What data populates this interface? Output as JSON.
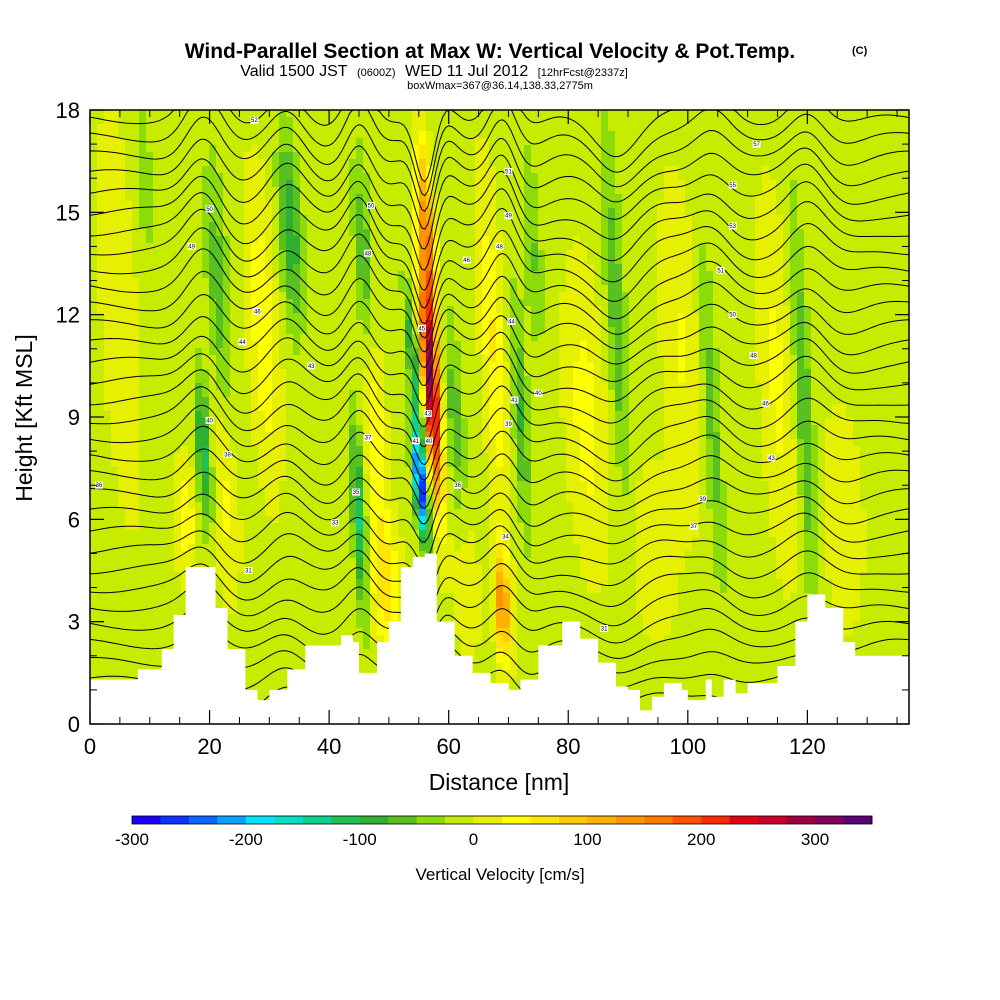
{
  "chart_data": {
    "type": "heatmap",
    "title": "Wind-Parallel Section at Max W: Vertical Velocity & Pot.Temp.",
    "title_badge": "(C)",
    "subtitle_main": "Valid 1500 JST",
    "subtitle_zulu": "(0600Z)",
    "subtitle_date": "WED 11 Jul 2012",
    "subtitle_fcst": "[12hrFcst@2337z]",
    "subtitle_box": "boxWmax=367@36.14,138.33,2775m",
    "xlabel": "Distance [nm]",
    "ylabel": "Height [Kft MSL]",
    "xlim": [
      0,
      137
    ],
    "ylim": [
      0,
      18
    ],
    "x_ticks": [
      0,
      20,
      40,
      60,
      80,
      100,
      120
    ],
    "x_tick_labels": [
      "0",
      "20",
      "40",
      "60",
      "80",
      "100",
      "120"
    ],
    "y_ticks": [
      0,
      3,
      6,
      9,
      12,
      15,
      18
    ],
    "y_tick_labels": [
      "0",
      "3",
      "6",
      "9",
      "12",
      "15",
      "18"
    ],
    "colorbar": {
      "label": "Vertical Velocity [cm/s]",
      "min": -300,
      "max": 350,
      "step": 25,
      "tick_values": [
        -300,
        -200,
        -100,
        0,
        100,
        200,
        300
      ],
      "tick_labels": [
        "-300",
        "-200",
        "-100",
        "0",
        "100",
        "200",
        "300"
      ],
      "colors": [
        "#1a00ff",
        "#0a34ff",
        "#0a68ff",
        "#0aa0ff",
        "#00e6ff",
        "#00e0c8",
        "#10d08c",
        "#20c050",
        "#30b030",
        "#58c020",
        "#8cdc0a",
        "#c8ec00",
        "#e6f000",
        "#ffff00",
        "#ffe600",
        "#ffcc00",
        "#ffb000",
        "#ff9400",
        "#ff7800",
        "#ff5000",
        "#ff2800",
        "#e60014",
        "#c80028",
        "#a00040",
        "#80005a",
        "#5a0078"
      ]
    },
    "terrain_kft": [
      [
        0,
        1.3
      ],
      [
        4,
        1.3
      ],
      [
        8,
        1.6
      ],
      [
        12,
        2.2
      ],
      [
        14,
        3.2
      ],
      [
        16,
        4.6
      ],
      [
        19,
        4.6
      ],
      [
        21,
        3.4
      ],
      [
        23,
        2.2
      ],
      [
        26,
        1.0
      ],
      [
        28,
        0.7
      ],
      [
        30,
        1.0
      ],
      [
        33,
        1.6
      ],
      [
        36,
        2.3
      ],
      [
        40,
        2.3
      ],
      [
        42,
        2.6
      ],
      [
        44,
        2.4
      ],
      [
        45,
        1.5
      ],
      [
        48,
        2.4
      ],
      [
        50,
        3.0
      ],
      [
        52,
        4.6
      ],
      [
        54,
        4.9
      ],
      [
        56,
        5.0
      ],
      [
        58,
        3.0
      ],
      [
        61,
        2.0
      ],
      [
        64,
        1.5
      ],
      [
        67,
        1.2
      ],
      [
        70,
        1.0
      ],
      [
        72,
        1.3
      ],
      [
        75,
        2.3
      ],
      [
        79,
        3.0
      ],
      [
        82,
        2.5
      ],
      [
        85,
        1.8
      ],
      [
        88,
        1.1
      ],
      [
        90,
        1.0
      ],
      [
        92,
        0.4
      ],
      [
        94,
        0.8
      ],
      [
        96,
        1.2
      ],
      [
        99,
        1.0
      ],
      [
        100,
        0.7
      ],
      [
        103,
        1.3
      ],
      [
        104,
        0.8
      ],
      [
        106,
        1.3
      ],
      [
        108,
        0.9
      ],
      [
        110,
        1.2
      ],
      [
        115,
        1.7
      ],
      [
        118,
        3.0
      ],
      [
        120,
        3.8
      ],
      [
        123,
        3.4
      ],
      [
        126,
        2.4
      ],
      [
        128,
        2.0
      ],
      [
        133,
        2.0
      ],
      [
        137,
        2.0
      ]
    ],
    "w_features": [
      {
        "x": 57.0,
        "y": 10.0,
        "w": 315,
        "sx": 1.3,
        "sy": 3.2,
        "tilt": -0.35
      },
      {
        "x": 56.4,
        "y": 14.5,
        "w": 150,
        "sx": 1.2,
        "sy": 2.5,
        "tilt": -0.4
      },
      {
        "x": 55.2,
        "y": 7.0,
        "w": -270,
        "sx": 1.0,
        "sy": 1.6,
        "tilt": -0.55
      },
      {
        "x": 54.4,
        "y": 10.0,
        "w": -115,
        "sx": 0.9,
        "sy": 2.6,
        "tilt": -0.55
      },
      {
        "x": 69.0,
        "y": 3.5,
        "w": 160,
        "sx": 1.2,
        "sy": 1.6,
        "tilt": -0.2
      },
      {
        "x": 67.5,
        "y": 11.0,
        "w": 60,
        "sx": 1.8,
        "sy": 4.5,
        "tilt": -0.3
      },
      {
        "x": 19.0,
        "y": 8.0,
        "w": -105,
        "sx": 1.3,
        "sy": 2.2,
        "tilt": -0.3
      },
      {
        "x": 21.5,
        "y": 12.5,
        "w": -60,
        "sx": 1.8,
        "sy": 4.0,
        "tilt": -0.3
      },
      {
        "x": 22.5,
        "y": 7.0,
        "w": 45,
        "sx": 2.0,
        "sy": 3.0,
        "tilt": -0.3
      },
      {
        "x": 33.5,
        "y": 14.5,
        "w": -90,
        "sx": 1.8,
        "sy": 2.8,
        "tilt": -0.3
      },
      {
        "x": 29.0,
        "y": 11.5,
        "w": 55,
        "sx": 2.2,
        "sy": 4.0,
        "tilt": -0.3
      },
      {
        "x": 45.0,
        "y": 6.0,
        "w": -120,
        "sx": 1.1,
        "sy": 2.8,
        "tilt": -0.3
      },
      {
        "x": 46.0,
        "y": 13.0,
        "w": -80,
        "sx": 1.5,
        "sy": 3.5,
        "tilt": -0.3
      },
      {
        "x": 47.5,
        "y": 9.0,
        "w": 75,
        "sx": 1.6,
        "sy": 4.0,
        "tilt": -0.3
      },
      {
        "x": 49.5,
        "y": 4.0,
        "w": 65,
        "sx": 2.5,
        "sy": 1.8,
        "tilt": -0.2
      },
      {
        "x": 16.0,
        "y": 6.0,
        "w": 50,
        "sx": 1.8,
        "sy": 1.6,
        "tilt": -0.2
      },
      {
        "x": 72.0,
        "y": 9.0,
        "w": -70,
        "sx": 1.3,
        "sy": 3.5,
        "tilt": -0.3
      },
      {
        "x": 74.0,
        "y": 14.0,
        "w": -45,
        "sx": 1.5,
        "sy": 3.0,
        "tilt": -0.3
      },
      {
        "x": 88.0,
        "y": 12.0,
        "w": -60,
        "sx": 1.6,
        "sy": 5.5,
        "tilt": -0.3
      },
      {
        "x": 83.0,
        "y": 9.0,
        "w": 45,
        "sx": 3.0,
        "sy": 4.0,
        "tilt": -0.3
      },
      {
        "x": 104.0,
        "y": 9.0,
        "w": -55,
        "sx": 1.4,
        "sy": 5.0,
        "tilt": -0.3
      },
      {
        "x": 99.0,
        "y": 11.0,
        "w": 35,
        "sx": 3.0,
        "sy": 4.5,
        "tilt": -0.3
      },
      {
        "x": 119.5,
        "y": 9.0,
        "w": -70,
        "sx": 1.4,
        "sy": 6.0,
        "tilt": -0.3
      },
      {
        "x": 115.0,
        "y": 10.0,
        "w": 40,
        "sx": 2.5,
        "sy": 5.0,
        "tilt": -0.3
      },
      {
        "x": 126.0,
        "y": 6.0,
        "w": 30,
        "sx": 3.0,
        "sy": 3.0,
        "tilt": -0.2
      },
      {
        "x": 5.0,
        "y": 12.0,
        "w": 25,
        "sx": 3.0,
        "sy": 6.0,
        "tilt": -0.3
      },
      {
        "x": 9.0,
        "y": 16.0,
        "w": -35,
        "sx": 1.5,
        "sy": 2.5,
        "tilt": -0.3
      },
      {
        "x": 61.0,
        "y": 9.0,
        "w": -55,
        "sx": 1.5,
        "sy": 3.0,
        "tilt": -0.3
      },
      {
        "x": 63.0,
        "y": 4.0,
        "w": 30,
        "sx": 2.0,
        "sy": 2.0,
        "tilt": -0.2
      },
      {
        "x": 94.0,
        "y": 5.0,
        "w": 25,
        "sx": 4.0,
        "sy": 2.5,
        "tilt": -0.2
      }
    ],
    "w_background": -8,
    "theta_levels": 32,
    "theta_base_kft": 0.7,
    "theta_spacing_kft": 0.55,
    "theta_wave": [
      {
        "x": 19,
        "amp": 0.9,
        "width": 4
      },
      {
        "x": 33,
        "amp": 0.6,
        "width": 4
      },
      {
        "x": 45,
        "amp": 0.8,
        "width": 3
      },
      {
        "x": 56,
        "amp": -1.3,
        "width": 2.2
      },
      {
        "x": 69,
        "amp": 0.9,
        "width": 3
      },
      {
        "x": 88,
        "amp": -0.7,
        "width": 5
      },
      {
        "x": 104,
        "amp": 0.5,
        "width": 4
      },
      {
        "x": 120,
        "amp": 0.6,
        "width": 4
      }
    ],
    "contour_labels": [
      {
        "x": 27.5,
        "y": 17.7,
        "text": "52"
      },
      {
        "x": 20.0,
        "y": 15.1,
        "text": "50"
      },
      {
        "x": 17.0,
        "y": 14.0,
        "text": "49"
      },
      {
        "x": 28.0,
        "y": 12.1,
        "text": "46"
      },
      {
        "x": 25.5,
        "y": 11.2,
        "text": "44"
      },
      {
        "x": 37.0,
        "y": 10.5,
        "text": "43"
      },
      {
        "x": 20.0,
        "y": 8.9,
        "text": "40"
      },
      {
        "x": 23.0,
        "y": 7.9,
        "text": "38"
      },
      {
        "x": 1.5,
        "y": 7.0,
        "text": "36"
      },
      {
        "x": 46.5,
        "y": 8.4,
        "text": "37"
      },
      {
        "x": 44.5,
        "y": 6.8,
        "text": "35"
      },
      {
        "x": 41.0,
        "y": 5.9,
        "text": "33"
      },
      {
        "x": 26.5,
        "y": 4.5,
        "text": "31"
      },
      {
        "x": 47.0,
        "y": 15.2,
        "text": "50"
      },
      {
        "x": 46.5,
        "y": 13.8,
        "text": "48"
      },
      {
        "x": 55.5,
        "y": 11.6,
        "text": "45"
      },
      {
        "x": 56.5,
        "y": 9.1,
        "text": "43"
      },
      {
        "x": 54.5,
        "y": 8.3,
        "text": "41"
      },
      {
        "x": 56.7,
        "y": 8.3,
        "text": "40"
      },
      {
        "x": 61.5,
        "y": 7.0,
        "text": "36"
      },
      {
        "x": 69.5,
        "y": 5.5,
        "text": "34"
      },
      {
        "x": 70.0,
        "y": 16.2,
        "text": "51"
      },
      {
        "x": 70.0,
        "y": 14.9,
        "text": "49"
      },
      {
        "x": 68.5,
        "y": 14.0,
        "text": "48"
      },
      {
        "x": 63.0,
        "y": 13.6,
        "text": "46"
      },
      {
        "x": 70.5,
        "y": 11.8,
        "text": "44"
      },
      {
        "x": 71.0,
        "y": 9.5,
        "text": "41"
      },
      {
        "x": 75.0,
        "y": 9.7,
        "text": "40"
      },
      {
        "x": 70.0,
        "y": 8.8,
        "text": "39"
      },
      {
        "x": 86.0,
        "y": 2.8,
        "text": "31"
      },
      {
        "x": 111.5,
        "y": 17.0,
        "text": "57"
      },
      {
        "x": 107.5,
        "y": 15.8,
        "text": "55"
      },
      {
        "x": 107.5,
        "y": 14.6,
        "text": "53"
      },
      {
        "x": 105.5,
        "y": 13.3,
        "text": "51"
      },
      {
        "x": 107.5,
        "y": 12.0,
        "text": "50"
      },
      {
        "x": 111.0,
        "y": 10.8,
        "text": "48"
      },
      {
        "x": 113.0,
        "y": 9.4,
        "text": "46"
      },
      {
        "x": 114.0,
        "y": 7.8,
        "text": "43"
      },
      {
        "x": 102.5,
        "y": 6.6,
        "text": "39"
      },
      {
        "x": 101.0,
        "y": 5.8,
        "text": "37"
      }
    ]
  }
}
